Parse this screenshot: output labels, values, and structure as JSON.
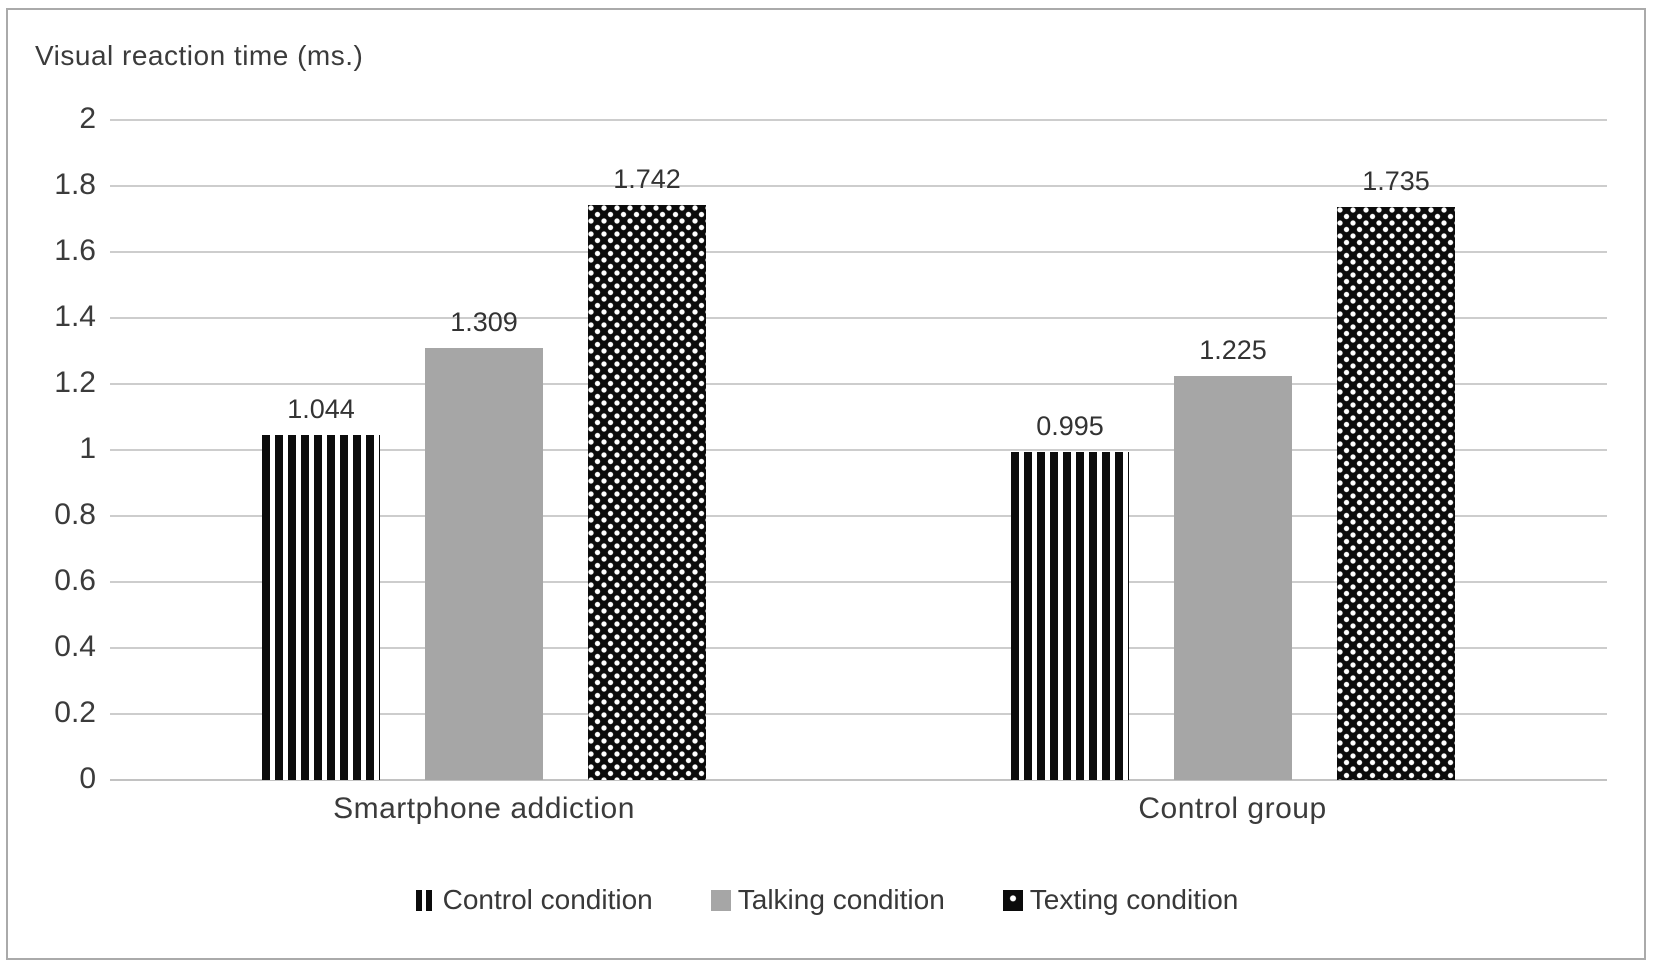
{
  "chart_data": {
    "type": "bar",
    "title": "Visual reaction time (ms.)",
    "categories": [
      "Smartphone addiction",
      "Control group"
    ],
    "series": [
      {
        "name": "Control condition",
        "pattern": "vertical-stripes",
        "values": [
          1.044,
          0.995
        ],
        "data_labels": [
          "1.044",
          "0.995"
        ]
      },
      {
        "name": "Talking condition",
        "pattern": "solid",
        "color": "#a6a6a6",
        "values": [
          1.309,
          1.225
        ],
        "data_labels": [
          "1.309",
          "1.225"
        ]
      },
      {
        "name": "Texting condition",
        "pattern": "dots",
        "values": [
          1.742,
          1.735
        ],
        "data_labels": [
          "1.742",
          "1.735"
        ]
      }
    ],
    "y_axis": {
      "min": 0,
      "max": 2,
      "step": 0.2,
      "tick_labels": [
        "2",
        "1.8",
        "1.6",
        "1.4",
        "1.2",
        "1",
        "0.8",
        "0.6",
        "0.4",
        "0.2",
        "0"
      ]
    },
    "legend": {
      "position": "bottom",
      "items": [
        "Control condition",
        "Talking condition",
        "Texting condition"
      ]
    },
    "grid": true,
    "colors": {
      "bar_black": "#0c0c0c",
      "bar_gray": "#a6a6a6",
      "gridline": "#cdcdcd",
      "text": "#3b3b3b",
      "frame_border": "#aaaaaa"
    }
  }
}
